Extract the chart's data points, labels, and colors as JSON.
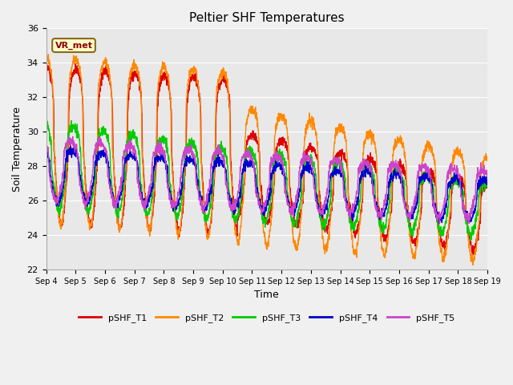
{
  "title": "Peltier SHF Temperatures",
  "xlabel": "Time",
  "ylabel": "Soil Temperature",
  "ylim": [
    22,
    36
  ],
  "background_color": "#f0f0f0",
  "plot_bg_color": "#e8e8e8",
  "grid_color": "#ffffff",
  "series": {
    "pSHF_T1": {
      "color": "#dd0000",
      "lw": 1.0
    },
    "pSHF_T2": {
      "color": "#ff8800",
      "lw": 1.0
    },
    "pSHF_T3": {
      "color": "#00cc00",
      "lw": 1.0
    },
    "pSHF_T4": {
      "color": "#0000cc",
      "lw": 1.0
    },
    "pSHF_T5": {
      "color": "#cc44cc",
      "lw": 1.0
    }
  },
  "xtick_labels": [
    "Sep 4",
    "Sep 5",
    "Sep 6",
    "Sep 7",
    "Sep 8",
    "Sep 9",
    "Sep 10",
    "Sep 11",
    "Sep 12",
    "Sep 13",
    "Sep 14",
    "Sep 15",
    "Sep 16",
    "Sep 17",
    "Sep 18",
    "Sep 19"
  ],
  "annotation_text": "VR_met",
  "annotation_color": "#8b0000",
  "annotation_bg": "#ffffcc",
  "annotation_edge": "#8b6914"
}
